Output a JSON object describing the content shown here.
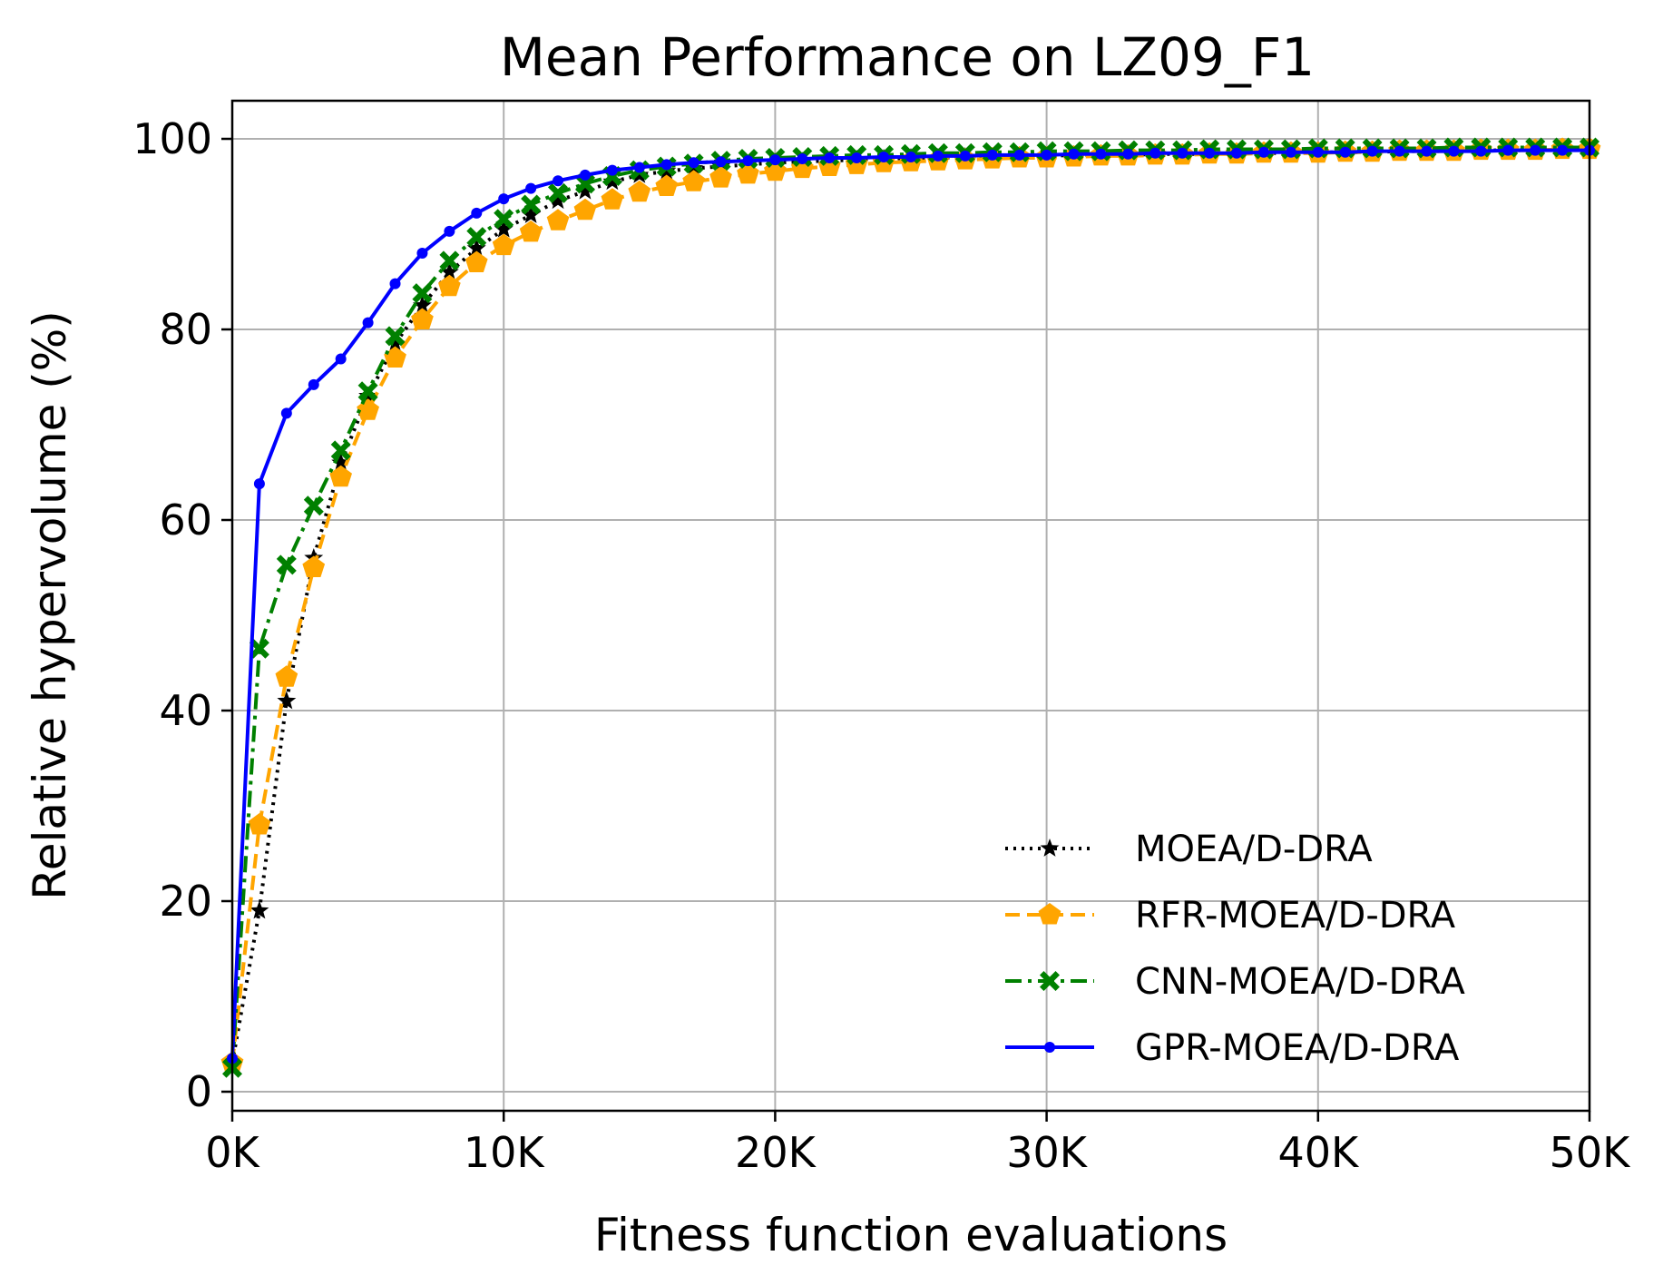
{
  "chart_data": {
    "type": "line",
    "title": "Mean Performance on LZ09_F1",
    "xlabel": "Fitness function evaluations",
    "ylabel": "Relative hypervolume (%)",
    "xlim": [
      0,
      50000
    ],
    "ylim": [
      -2,
      104
    ],
    "xticks": [
      0,
      10000,
      20000,
      30000,
      40000,
      50000
    ],
    "xtick_labels": [
      "0K",
      "10K",
      "20K",
      "30K",
      "40K",
      "50K"
    ],
    "yticks": [
      0,
      20,
      40,
      60,
      80,
      100
    ],
    "ytick_labels": [
      "0",
      "20",
      "40",
      "60",
      "80",
      "100"
    ],
    "grid": true,
    "legend_position": "lower-right",
    "x": [
      0,
      1000,
      2000,
      3000,
      4000,
      5000,
      6000,
      7000,
      8000,
      9000,
      10000,
      11000,
      12000,
      13000,
      14000,
      15000,
      16000,
      17000,
      18000,
      19000,
      20000,
      21000,
      22000,
      23000,
      24000,
      25000,
      26000,
      27000,
      28000,
      29000,
      30000,
      31000,
      32000,
      33000,
      34000,
      35000,
      36000,
      37000,
      38000,
      39000,
      40000,
      41000,
      42000,
      43000,
      44000,
      45000,
      46000,
      47000,
      48000,
      49000,
      50000
    ],
    "series": [
      {
        "name": "MOEA/D-DRA",
        "color": "#000000",
        "linestyle": "dotted",
        "marker": "star",
        "values": [
          3,
          19,
          41,
          56,
          66,
          73,
          78.5,
          82.5,
          86,
          88.5,
          90.5,
          92,
          93.5,
          94.5,
          95.5,
          96.2,
          96.6,
          96.9,
          97.1,
          97.3,
          97.5,
          97.6,
          97.7,
          97.8,
          97.9,
          98,
          98,
          98.1,
          98.1,
          98.2,
          98.2,
          98.3,
          98.3,
          98.3,
          98.4,
          98.4,
          98.4,
          98.5,
          98.5,
          98.5,
          98.6,
          98.6,
          98.6,
          98.7,
          98.7,
          98.7,
          98.8,
          98.8,
          98.8,
          98.9,
          98.9
        ]
      },
      {
        "name": "RFR-MOEA/D-DRA",
        "color": "#FFA500",
        "linestyle": "dashed",
        "marker": "pentagon",
        "values": [
          3,
          28,
          43.5,
          55,
          64.5,
          71.5,
          77,
          81,
          84.5,
          87,
          88.8,
          90.2,
          91.4,
          92.5,
          93.6,
          94.4,
          95,
          95.5,
          95.9,
          96.3,
          96.6,
          96.9,
          97.1,
          97.3,
          97.5,
          97.6,
          97.7,
          97.8,
          97.9,
          98,
          98,
          98.1,
          98.2,
          98.2,
          98.3,
          98.3,
          98.4,
          98.4,
          98.5,
          98.5,
          98.5,
          98.6,
          98.6,
          98.7,
          98.7,
          98.7,
          98.8,
          98.8,
          98.8,
          98.9,
          98.9
        ]
      },
      {
        "name": "CNN-MOEA/D-DRA",
        "color": "#008000",
        "linestyle": "dashdot",
        "marker": "x",
        "values": [
          2.5,
          46.5,
          55.3,
          61.5,
          67.3,
          73.5,
          79.3,
          83.8,
          87.2,
          89.7,
          91.6,
          93.1,
          94.3,
          95.3,
          96.1,
          96.7,
          97.1,
          97.4,
          97.7,
          97.9,
          98,
          98.1,
          98.2,
          98.3,
          98.3,
          98.4,
          98.5,
          98.5,
          98.6,
          98.6,
          98.7,
          98.7,
          98.7,
          98.8,
          98.8,
          98.8,
          98.9,
          98.9,
          98.9,
          98.9,
          99,
          99,
          99,
          99,
          99,
          99.1,
          99.1,
          99.1,
          99.1,
          99.1,
          99.1
        ]
      },
      {
        "name": "GPR-MOEA/D-DRA",
        "color": "#0000FF",
        "linestyle": "solid",
        "marker": "dot",
        "values": [
          3.5,
          63.8,
          71.2,
          74.2,
          76.9,
          80.7,
          84.8,
          88,
          90.3,
          92.2,
          93.7,
          94.8,
          95.6,
          96.2,
          96.7,
          97,
          97.3,
          97.5,
          97.6,
          97.7,
          97.8,
          97.9,
          98,
          98,
          98.1,
          98.1,
          98.2,
          98.2,
          98.3,
          98.3,
          98.3,
          98.4,
          98.4,
          98.4,
          98.5,
          98.5,
          98.5,
          98.5,
          98.6,
          98.6,
          98.6,
          98.6,
          98.7,
          98.7,
          98.7,
          98.7,
          98.7,
          98.8,
          98.8,
          98.8,
          98.8
        ]
      }
    ]
  }
}
